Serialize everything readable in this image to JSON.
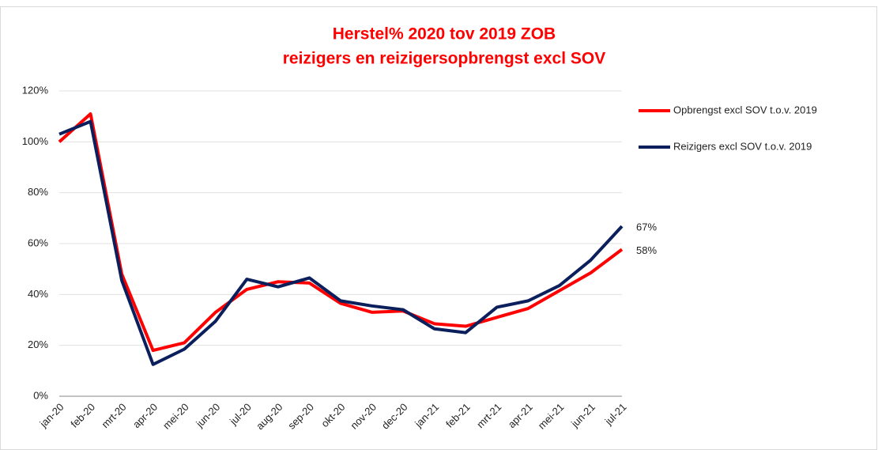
{
  "chart_data": {
    "type": "line",
    "title": "Herstel% 2020 tov 2019  ZOB",
    "subtitle": "reizigers en reizigersopbrengst excl SOV",
    "categories": [
      "jan-20",
      "feb-20",
      "mrt-20",
      "apr-20",
      "mei-20",
      "jun-20",
      "jul-20",
      "aug-20",
      "sep-20",
      "okt-20",
      "nov-20",
      "dec-20",
      "jan-21",
      "feb-21",
      "mrt-21",
      "apr-21",
      "mei-21",
      "jun-21",
      "jul-21"
    ],
    "series": [
      {
        "name": "Opbrengst excl SOV t.o.v. 2019",
        "color": "#ff0000",
        "values": [
          100,
          111,
          48,
          18,
          21,
          33,
          42,
          45,
          44.5,
          36.5,
          33,
          33.5,
          28.5,
          27.5,
          31,
          34.5,
          41.5,
          48.5,
          57.7
        ],
        "value_labels": [
          null,
          null,
          null,
          null,
          null,
          null,
          null,
          null,
          null,
          null,
          null,
          null,
          null,
          null,
          null,
          null,
          null,
          null,
          "58%"
        ]
      },
      {
        "name": "Reizigers excl SOV t.o.v. 2019",
        "color": "#0a1f5c",
        "values": [
          103,
          108,
          45.5,
          12.5,
          18.5,
          29.5,
          46,
          43,
          46.5,
          37.5,
          35.5,
          34,
          26.5,
          25,
          35,
          37.5,
          43.5,
          53.5,
          66.8
        ],
        "value_labels": [
          null,
          null,
          null,
          null,
          null,
          null,
          null,
          null,
          null,
          null,
          null,
          null,
          null,
          null,
          null,
          null,
          null,
          null,
          "67%"
        ]
      }
    ],
    "ylim": [
      0,
      120
    ],
    "yticks": [
      {
        "value": 0,
        "label": "0%"
      },
      {
        "value": 20,
        "label": "20%"
      },
      {
        "value": 40,
        "label": "40%"
      },
      {
        "value": 60,
        "label": "60%"
      },
      {
        "value": 80,
        "label": "80%"
      },
      {
        "value": 100,
        "label": "100%"
      },
      {
        "value": 120,
        "label": "120%"
      }
    ],
    "grid": true,
    "legend": "right"
  }
}
